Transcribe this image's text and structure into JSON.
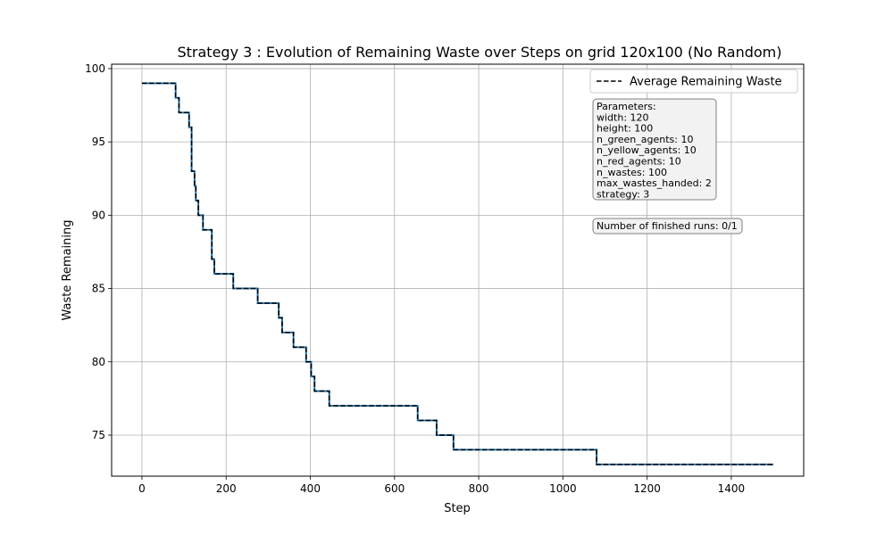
{
  "chart_data": {
    "type": "line",
    "title": "Strategy 3 : Evolution of Remaining Waste over Steps on grid 120x100 (No Random)",
    "xlabel": "Step",
    "ylabel": "Waste Remaining",
    "xlim": [
      -72,
      1572
    ],
    "ylim": [
      72.2,
      100.3
    ],
    "xticks": [
      0,
      200,
      400,
      600,
      800,
      1000,
      1200,
      1400
    ],
    "yticks": [
      75,
      80,
      85,
      90,
      95,
      100
    ],
    "grid": true,
    "legend_position": "top-right",
    "series": [
      {
        "name": "Average Remaining Waste",
        "style": "step",
        "colors": {
          "under": "#1f77b4",
          "over": "#000000"
        },
        "x": [
          0,
          72,
          80,
          88,
          112,
          118,
          125,
          128,
          134,
          145,
          166,
          172,
          217,
          275,
          325,
          333,
          360,
          390,
          402,
          410,
          445,
          655,
          700,
          740,
          1080,
          1500
        ],
        "y": [
          99,
          99,
          98,
          97,
          96,
          93,
          92,
          91,
          90,
          89,
          87,
          86,
          85,
          84,
          83,
          82,
          81,
          80,
          79,
          78,
          77,
          76,
          75,
          74,
          73,
          73
        ]
      }
    ],
    "annotations": {
      "parameters_box": [
        "Parameters:",
        "width: 120",
        "height: 100",
        "n_green_agents: 10",
        "n_yellow_agents: 10",
        "n_red_agents: 10",
        "n_wastes: 100",
        "max_wastes_handed: 2",
        "strategy: 3"
      ],
      "runs_box": "Number of finished runs: 0/1"
    }
  }
}
